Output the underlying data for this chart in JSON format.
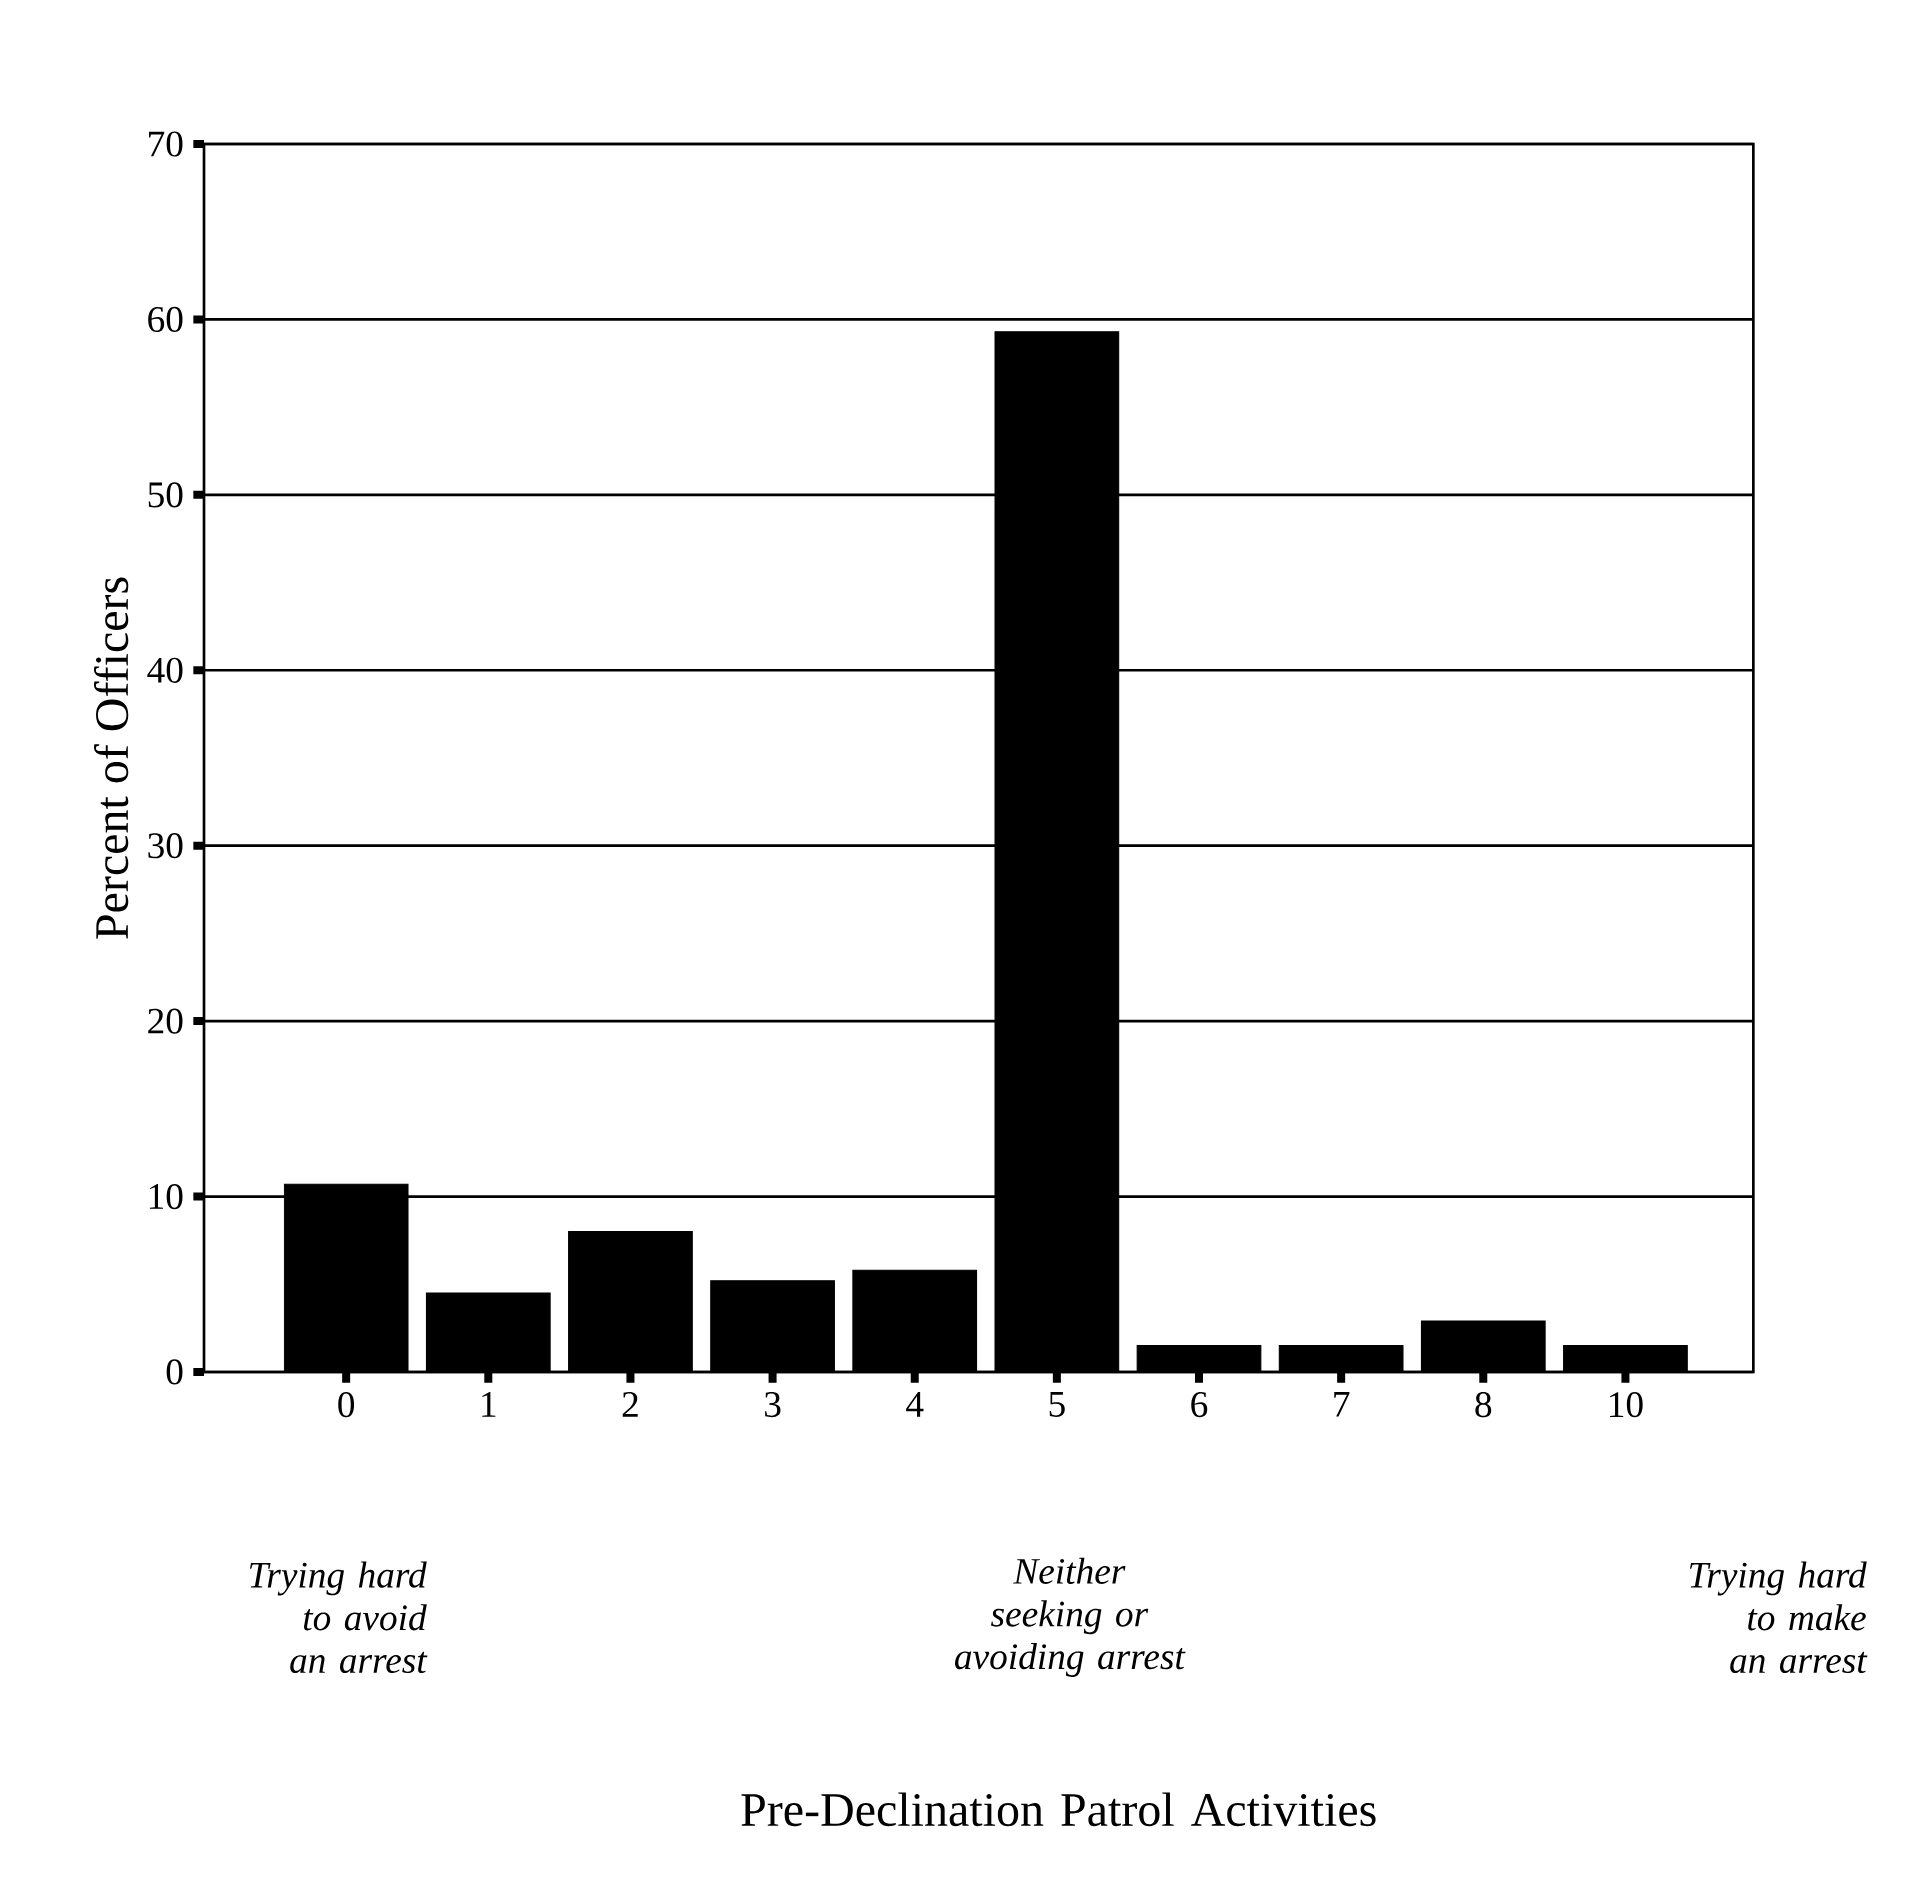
{
  "chart_data": {
    "type": "bar",
    "ylabel": "Percent of Officers",
    "categories": [
      "0",
      "1",
      "2",
      "3",
      "4",
      "5",
      "6",
      "7",
      "8",
      "10"
    ],
    "values": [
      10.7,
      4.5,
      8.0,
      5.2,
      5.8,
      59.3,
      1.5,
      1.5,
      2.9,
      1.5
    ],
    "color": "#000000",
    "ylim": [
      0,
      70
    ],
    "yticks": [
      0,
      10,
      20,
      30,
      40,
      50,
      60,
      70
    ],
    "grid": "y",
    "annotations": [
      "Trying hard to avoid an arrest",
      "Neither seeking or avoiding arrest",
      "Trying hard to make an arrest",
      "Pre-Declination Patrol Activities"
    ]
  }
}
